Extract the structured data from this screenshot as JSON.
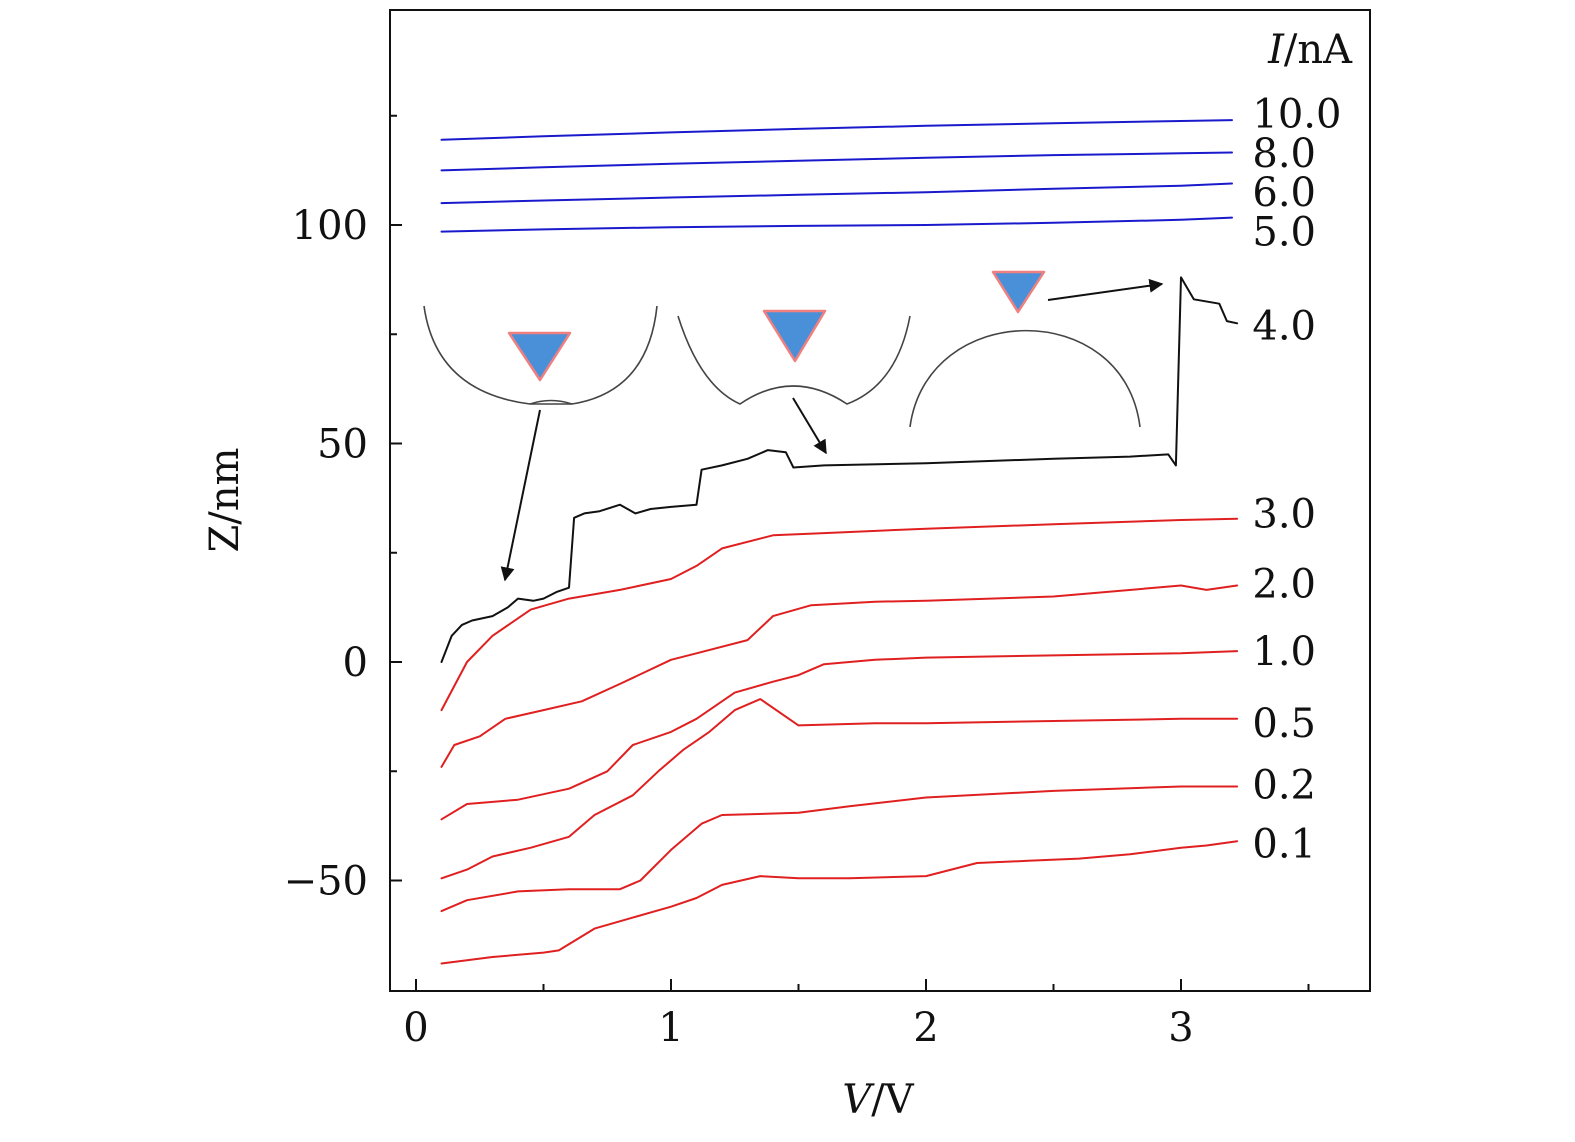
{
  "chart_data": {
    "type": "line",
    "title": "",
    "xlabel_var": "V",
    "xlabel_unit": "/V",
    "ylabel": "Z/nm",
    "legend_title_var": "I",
    "legend_title_unit": "/nA",
    "xlim": [
      -0.1,
      3.75
    ],
    "ylim": [
      -75,
      150
    ],
    "x_ticks": [
      0,
      1,
      2,
      3
    ],
    "x_tick_labels": [
      "0",
      "1",
      "2",
      "3"
    ],
    "y_ticks": [
      -50,
      0,
      50,
      100
    ],
    "y_tick_labels": [
      "−50",
      "0",
      "50",
      "100"
    ],
    "colors": {
      "high_current": "#1a1acc",
      "transition": "#111111",
      "low_current": "#e02020",
      "tip": "#4a90d9",
      "tip_edge": "#f08080",
      "sketch": "#444444"
    },
    "series": [
      {
        "name": "10.0",
        "color": "#1a1acc",
        "points": [
          [
            0.1,
            119.5
          ],
          [
            0.5,
            120.3
          ],
          [
            1.0,
            121.2
          ],
          [
            1.5,
            122.0
          ],
          [
            2.0,
            122.7
          ],
          [
            2.5,
            123.3
          ],
          [
            3.0,
            123.8
          ],
          [
            3.2,
            124.0
          ]
        ]
      },
      {
        "name": "8.0",
        "color": "#1a1acc",
        "points": [
          [
            0.1,
            112.5
          ],
          [
            0.5,
            113.2
          ],
          [
            1.0,
            114.0
          ],
          [
            1.5,
            114.7
          ],
          [
            2.0,
            115.4
          ],
          [
            2.5,
            116.0
          ],
          [
            3.0,
            116.4
          ],
          [
            3.2,
            116.6
          ]
        ]
      },
      {
        "name": "6.0",
        "color": "#1a1acc",
        "points": [
          [
            0.1,
            105.0
          ],
          [
            0.5,
            105.6
          ],
          [
            1.0,
            106.3
          ],
          [
            1.5,
            106.9
          ],
          [
            2.0,
            107.5
          ],
          [
            2.5,
            108.3
          ],
          [
            3.0,
            109.0
          ],
          [
            3.2,
            109.5
          ]
        ]
      },
      {
        "name": "5.0",
        "color": "#1a1acc",
        "points": [
          [
            0.1,
            98.5
          ],
          [
            0.5,
            99.0
          ],
          [
            1.0,
            99.5
          ],
          [
            1.5,
            99.8
          ],
          [
            2.0,
            100.0
          ],
          [
            2.5,
            100.5
          ],
          [
            3.0,
            101.2
          ],
          [
            3.2,
            101.7
          ]
        ]
      },
      {
        "name": "4.0",
        "color": "#111111",
        "points": [
          [
            0.1,
            0.0
          ],
          [
            0.14,
            6.0
          ],
          [
            0.18,
            8.5
          ],
          [
            0.22,
            9.5
          ],
          [
            0.3,
            10.5
          ],
          [
            0.36,
            12.5
          ],
          [
            0.4,
            14.5
          ],
          [
            0.46,
            14.0
          ],
          [
            0.5,
            14.5
          ],
          [
            0.55,
            16.0
          ],
          [
            0.6,
            17.0
          ],
          [
            0.62,
            33.0
          ],
          [
            0.66,
            34.0
          ],
          [
            0.72,
            34.5
          ],
          [
            0.8,
            36.0
          ],
          [
            0.86,
            34.0
          ],
          [
            0.92,
            35.0
          ],
          [
            1.0,
            35.5
          ],
          [
            1.1,
            36.0
          ],
          [
            1.12,
            44.0
          ],
          [
            1.2,
            45.0
          ],
          [
            1.3,
            46.5
          ],
          [
            1.38,
            48.5
          ],
          [
            1.45,
            48.0
          ],
          [
            1.48,
            44.5
          ],
          [
            1.6,
            45.0
          ],
          [
            2.0,
            45.5
          ],
          [
            2.5,
            46.5
          ],
          [
            2.8,
            47.0
          ],
          [
            2.95,
            47.5
          ],
          [
            2.98,
            45.0
          ],
          [
            3.0,
            88.0
          ],
          [
            3.05,
            83.0
          ],
          [
            3.15,
            82.0
          ],
          [
            3.18,
            78.0
          ],
          [
            3.22,
            77.5
          ]
        ]
      },
      {
        "name": "3.0",
        "color": "#e02020",
        "points": [
          [
            0.1,
            -11.0
          ],
          [
            0.2,
            0.0
          ],
          [
            0.3,
            6.0
          ],
          [
            0.45,
            12.0
          ],
          [
            0.6,
            14.5
          ],
          [
            0.8,
            16.5
          ],
          [
            1.0,
            19.0
          ],
          [
            1.1,
            22.0
          ],
          [
            1.2,
            26.0
          ],
          [
            1.4,
            29.0
          ],
          [
            1.6,
            29.5
          ],
          [
            2.0,
            30.5
          ],
          [
            2.5,
            31.5
          ],
          [
            3.0,
            32.5
          ],
          [
            3.22,
            32.8
          ]
        ]
      },
      {
        "name": "2.0",
        "color": "#e02020",
        "points": [
          [
            0.1,
            -24.0
          ],
          [
            0.15,
            -19.0
          ],
          [
            0.25,
            -17.0
          ],
          [
            0.35,
            -13.0
          ],
          [
            0.5,
            -11.0
          ],
          [
            0.65,
            -9.0
          ],
          [
            0.8,
            -5.0
          ],
          [
            1.0,
            0.5
          ],
          [
            1.1,
            2.0
          ],
          [
            1.3,
            5.0
          ],
          [
            1.4,
            10.5
          ],
          [
            1.55,
            13.0
          ],
          [
            1.8,
            13.8
          ],
          [
            2.0,
            14.0
          ],
          [
            2.5,
            15.0
          ],
          [
            3.0,
            17.5
          ],
          [
            3.1,
            16.5
          ],
          [
            3.22,
            17.5
          ]
        ]
      },
      {
        "name": "1.0",
        "color": "#e02020",
        "points": [
          [
            0.1,
            -36.0
          ],
          [
            0.2,
            -32.5
          ],
          [
            0.4,
            -31.5
          ],
          [
            0.6,
            -29.0
          ],
          [
            0.75,
            -25.0
          ],
          [
            0.85,
            -19.0
          ],
          [
            1.0,
            -16.0
          ],
          [
            1.1,
            -13.0
          ],
          [
            1.25,
            -7.0
          ],
          [
            1.4,
            -4.5
          ],
          [
            1.5,
            -3.0
          ],
          [
            1.6,
            -0.5
          ],
          [
            1.8,
            0.5
          ],
          [
            2.0,
            1.0
          ],
          [
            2.5,
            1.5
          ],
          [
            3.0,
            2.0
          ],
          [
            3.22,
            2.5
          ]
        ]
      },
      {
        "name": "0.5",
        "color": "#e02020",
        "points": [
          [
            0.1,
            -49.5
          ],
          [
            0.2,
            -47.5
          ],
          [
            0.3,
            -44.5
          ],
          [
            0.45,
            -42.5
          ],
          [
            0.6,
            -40.0
          ],
          [
            0.7,
            -35.0
          ],
          [
            0.85,
            -30.5
          ],
          [
            0.95,
            -25.0
          ],
          [
            1.05,
            -20.0
          ],
          [
            1.15,
            -16.0
          ],
          [
            1.25,
            -11.0
          ],
          [
            1.35,
            -8.5
          ],
          [
            1.5,
            -14.5
          ],
          [
            1.8,
            -14.0
          ],
          [
            2.0,
            -14.0
          ],
          [
            2.5,
            -13.5
          ],
          [
            3.0,
            -13.0
          ],
          [
            3.22,
            -13.0
          ]
        ]
      },
      {
        "name": "0.2",
        "color": "#e02020",
        "points": [
          [
            0.1,
            -57.0
          ],
          [
            0.2,
            -54.5
          ],
          [
            0.4,
            -52.5
          ],
          [
            0.6,
            -52.0
          ],
          [
            0.8,
            -52.0
          ],
          [
            0.88,
            -50.0
          ],
          [
            1.0,
            -43.0
          ],
          [
            1.12,
            -37.0
          ],
          [
            1.2,
            -35.0
          ],
          [
            1.5,
            -34.5
          ],
          [
            1.7,
            -33.0
          ],
          [
            2.0,
            -31.0
          ],
          [
            2.5,
            -29.5
          ],
          [
            3.0,
            -28.5
          ],
          [
            3.22,
            -28.5
          ]
        ]
      },
      {
        "name": "0.1",
        "color": "#e02020",
        "points": [
          [
            0.1,
            -69.0
          ],
          [
            0.3,
            -67.5
          ],
          [
            0.5,
            -66.5
          ],
          [
            0.56,
            -66.0
          ],
          [
            0.7,
            -61.0
          ],
          [
            0.85,
            -58.5
          ],
          [
            1.0,
            -56.0
          ],
          [
            1.1,
            -54.0
          ],
          [
            1.2,
            -51.0
          ],
          [
            1.35,
            -49.0
          ],
          [
            1.5,
            -49.5
          ],
          [
            1.7,
            -49.5
          ],
          [
            2.0,
            -49.0
          ],
          [
            2.2,
            -46.0
          ],
          [
            2.4,
            -45.5
          ],
          [
            2.6,
            -45.0
          ],
          [
            2.8,
            -44.0
          ],
          [
            3.0,
            -42.5
          ],
          [
            3.1,
            -42.0
          ],
          [
            3.22,
            -41.0
          ]
        ]
      }
    ],
    "curve_labels": [
      {
        "text": "10.0",
        "x": 3.28,
        "y": 125.5
      },
      {
        "text": "8.0",
        "x": 3.28,
        "y": 116.5
      },
      {
        "text": "6.0",
        "x": 3.28,
        "y": 107.5
      },
      {
        "text": "5.0",
        "x": 3.28,
        "y": 98.5
      },
      {
        "text": "4.0",
        "x": 3.28,
        "y": 77.0
      },
      {
        "text": "3.0",
        "x": 3.28,
        "y": 34.0
      },
      {
        "text": "2.0",
        "x": 3.28,
        "y": 18.0
      },
      {
        "text": "1.0",
        "x": 3.28,
        "y": 2.5
      },
      {
        "text": "0.5",
        "x": 3.28,
        "y": -14.0
      },
      {
        "text": "0.2",
        "x": 3.28,
        "y": -28.0
      },
      {
        "text": "0.1",
        "x": 3.28,
        "y": -41.5
      }
    ],
    "grid": false
  }
}
